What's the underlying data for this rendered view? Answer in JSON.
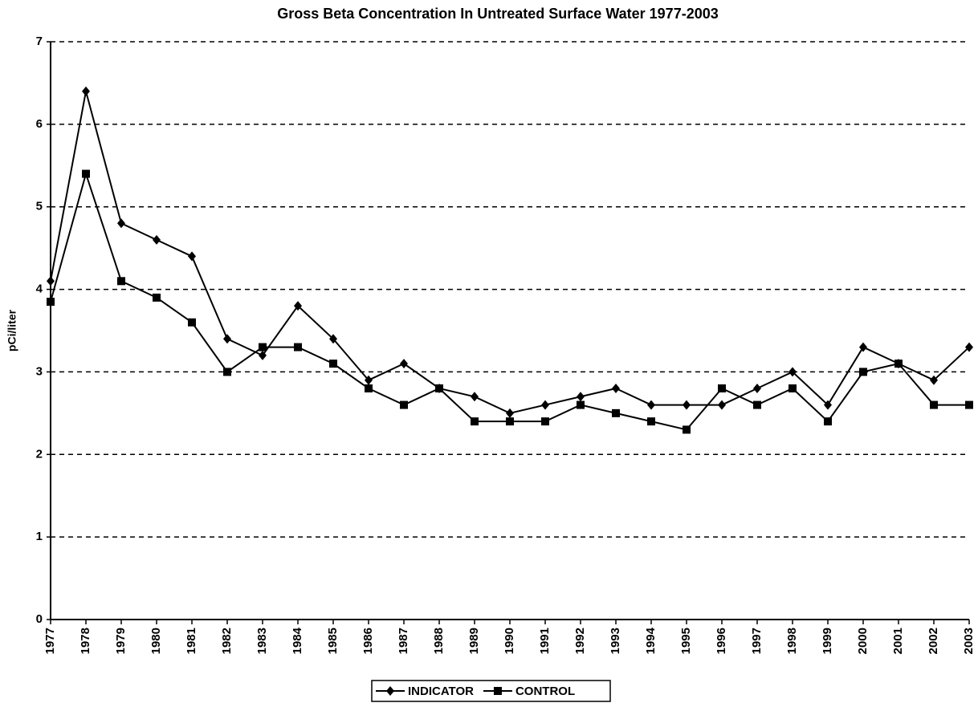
{
  "chart_data": {
    "type": "line",
    "title": "Gross Beta Concentration In Untreated Surface Water 1977-2003",
    "y_label": "pCi/liter",
    "x": [
      1977,
      1978,
      1979,
      1980,
      1981,
      1982,
      1983,
      1984,
      1985,
      1986,
      1987,
      1988,
      1989,
      1990,
      1991,
      1992,
      1993,
      1994,
      1995,
      1996,
      1997,
      1998,
      1999,
      2000,
      2001,
      2002,
      2003
    ],
    "xlim": [
      1977,
      2003
    ],
    "xticks": [
      1977,
      1978,
      1979,
      1980,
      1981,
      1982,
      1983,
      1984,
      1985,
      1986,
      1987,
      1988,
      1989,
      1990,
      1991,
      1992,
      1993,
      1994,
      1995,
      1996,
      1997,
      1998,
      1999,
      2000,
      2001,
      2002,
      2003
    ],
    "ylim": [
      0,
      7
    ],
    "yticks": [
      0,
      1,
      2,
      3,
      4,
      5,
      6,
      7
    ],
    "grid": true,
    "legend": "bottom",
    "series": [
      {
        "name": "INDICATOR",
        "color": "#000000",
        "marker": "diamond",
        "values": [
          4.1,
          6.4,
          4.8,
          4.6,
          4.4,
          3.4,
          3.2,
          3.8,
          3.4,
          2.9,
          3.1,
          2.8,
          2.7,
          2.5,
          2.6,
          2.7,
          2.8,
          2.6,
          2.6,
          2.6,
          2.8,
          3.0,
          2.6,
          3.3,
          3.1,
          2.9,
          3.3
        ]
      },
      {
        "name": "CONTROL",
        "color": "#000000",
        "marker": "square",
        "values": [
          3.85,
          5.4,
          4.1,
          3.9,
          3.6,
          3.0,
          3.3,
          3.3,
          3.1,
          2.8,
          2.6,
          2.8,
          2.4,
          2.4,
          2.4,
          2.6,
          2.5,
          2.4,
          2.3,
          2.8,
          2.6,
          2.8,
          2.4,
          3.0,
          3.1,
          2.6,
          2.6
        ]
      }
    ]
  }
}
